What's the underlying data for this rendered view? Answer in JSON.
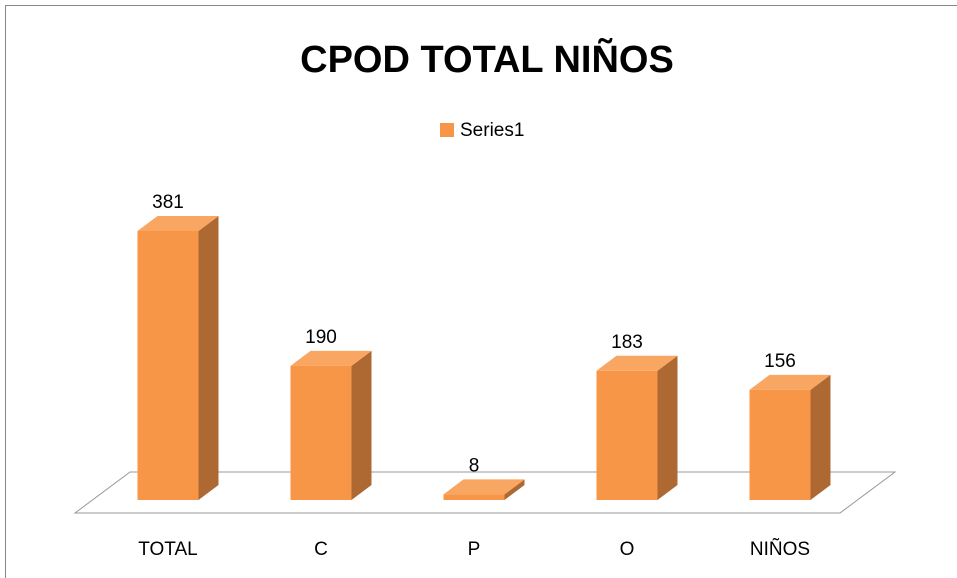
{
  "chart_data": {
    "type": "bar3d",
    "title": "CPOD TOTAL NIÑOS",
    "categories": [
      "TOTAL",
      "C",
      "P",
      "O",
      "NIÑOS"
    ],
    "series": [
      {
        "name": "Series1",
        "color": "#f79646",
        "values": [
          381,
          190,
          8,
          183,
          156
        ]
      }
    ],
    "legend": "top"
  }
}
